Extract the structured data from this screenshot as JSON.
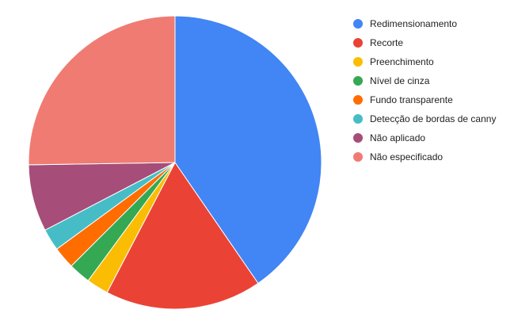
{
  "chart_data": {
    "type": "pie",
    "title": "",
    "legend_position": "right",
    "start_angle": "12 o'clock, clockwise",
    "slices": [
      {
        "label": "Redimensionamento",
        "value": 40.0,
        "color": "#4285F4"
      },
      {
        "label": "Recorte",
        "value": 17.1,
        "color": "#EA4335"
      },
      {
        "label": "Preenchimento",
        "value": 2.4,
        "color": "#FBBC04"
      },
      {
        "label": "Nível de cinza",
        "value": 2.4,
        "color": "#34A853"
      },
      {
        "label": "Fundo transparente",
        "value": 2.4,
        "color": "#FF6D01"
      },
      {
        "label": "Detecção de bordas de canny",
        "value": 2.4,
        "color": "#46BDC6"
      },
      {
        "label": "Não aplicado",
        "value": 7.3,
        "color": "#A64D79"
      },
      {
        "label": "Não especificado",
        "value": 25.0,
        "color": "#F07B72"
      }
    ]
  }
}
